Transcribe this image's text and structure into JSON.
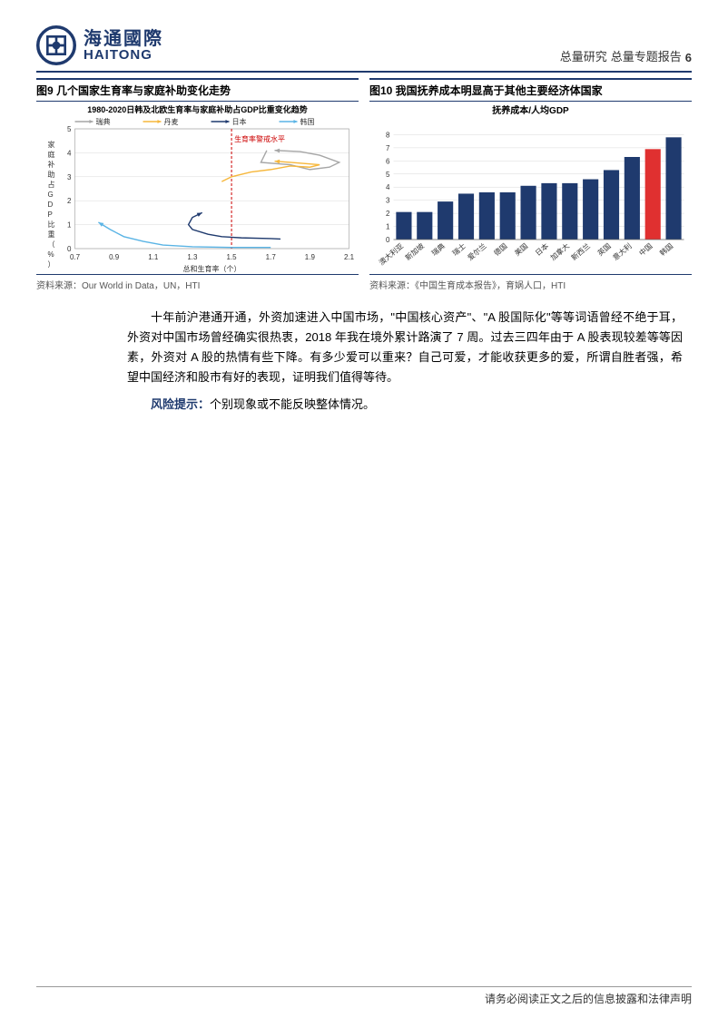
{
  "header": {
    "logo_cn": "海通國際",
    "logo_en": "HAITONG",
    "category1": "总量研究",
    "category2": "总量专题报告",
    "page_num": "6"
  },
  "chart9": {
    "title": "图9  几个国家生育率与家庭补助变化走势",
    "inner_title": "1980-2020日韩及北欧生育率与家庭补助占GDP比重变化趋势",
    "legend": [
      {
        "label": "瑞典",
        "color": "#a6a6a6"
      },
      {
        "label": "丹麦",
        "color": "#f6b73c"
      },
      {
        "label": "日本",
        "color": "#1f3a6e"
      },
      {
        "label": "韩国",
        "color": "#5ab4e5"
      }
    ],
    "xlabel": "总和生育率（个）",
    "ylabel": "家庭补助占GDP比重（%）",
    "xlim": [
      0.7,
      2.1
    ],
    "ylim": [
      0,
      5
    ],
    "xticks": [
      0.7,
      0.9,
      1.1,
      1.3,
      1.5,
      1.7,
      1.9,
      2.1
    ],
    "yticks": [
      0,
      1,
      2,
      3,
      4,
      5
    ],
    "vline_x": 1.5,
    "vline_label": "生育率警戒水平",
    "vline_color": "#cc0000",
    "series": {
      "sweden": [
        [
          1.68,
          4.1
        ],
        [
          1.65,
          3.6
        ],
        [
          1.8,
          3.5
        ],
        [
          1.9,
          3.3
        ],
        [
          2.0,
          3.4
        ],
        [
          2.05,
          3.6
        ],
        [
          1.95,
          3.9
        ],
        [
          1.85,
          4.05
        ],
        [
          1.72,
          4.1
        ]
      ],
      "denmark": [
        [
          1.45,
          2.8
        ],
        [
          1.5,
          3.0
        ],
        [
          1.6,
          3.2
        ],
        [
          1.7,
          3.3
        ],
        [
          1.8,
          3.45
        ],
        [
          1.9,
          3.4
        ],
        [
          1.95,
          3.5
        ],
        [
          1.8,
          3.6
        ],
        [
          1.72,
          3.65
        ]
      ],
      "japan": [
        [
          1.75,
          0.4
        ],
        [
          1.7,
          0.42
        ],
        [
          1.55,
          0.45
        ],
        [
          1.45,
          0.5
        ],
        [
          1.38,
          0.6
        ],
        [
          1.3,
          0.8
        ],
        [
          1.28,
          1.0
        ],
        [
          1.3,
          1.3
        ],
        [
          1.35,
          1.5
        ]
      ],
      "korea": [
        [
          1.7,
          0.05
        ],
        [
          1.5,
          0.05
        ],
        [
          1.3,
          0.08
        ],
        [
          1.15,
          0.15
        ],
        [
          1.05,
          0.3
        ],
        [
          0.95,
          0.5
        ],
        [
          0.88,
          0.8
        ],
        [
          0.84,
          1.0
        ],
        [
          0.82,
          1.1
        ]
      ]
    },
    "source": "资料来源：Our World in Data，UN，HTI",
    "background_color": "#ffffff",
    "grid_color": "#d9d9d9",
    "font_size": 9
  },
  "chart10": {
    "title": "图10 我国抚养成本明显高于其他主要经济体国家",
    "inner_title": "抚养成本/人均GDP",
    "type": "bar",
    "categories": [
      "澳大利亚",
      "新加坡",
      "瑞典",
      "瑞士",
      "爱尔兰",
      "德国",
      "美国",
      "日本",
      "加拿大",
      "新西兰",
      "英国",
      "意大利",
      "中国",
      "韩国"
    ],
    "values": [
      2.1,
      2.1,
      2.9,
      3.5,
      3.6,
      3.6,
      4.1,
      4.3,
      4.3,
      4.6,
      5.3,
      6.3,
      6.9,
      7.8
    ],
    "highlight_index": 12,
    "bar_color": "#1f3a6e",
    "highlight_color": "#e03030",
    "ylim": [
      0,
      9
    ],
    "yticks": [
      0,
      1,
      2,
      3,
      4,
      5,
      6,
      7,
      8
    ],
    "source": "资料来源：《中国生育成本报告》，育娲人口，HTI",
    "background_color": "#ffffff",
    "grid_color": "#d9d9d9",
    "font_size": 9
  },
  "body": {
    "para1": "十年前沪港通开通，外资加速进入中国市场，\"中国核心资产\"、\"A 股国际化\"等等词语曾经不绝于耳，外资对中国市场曾经确实很热衷，2018 年我在境外累计路演了 7 周。过去三四年由于 A 股表现较差等等因素，外资对 A 股的热情有些下降。有多少爱可以重来？自己可爱，才能收获更多的爱，所谓自胜者强，希望中国经济和股市有好的表现，证明我们值得等待。",
    "risk_label": "风险提示：",
    "risk_text": "个别现象或不能反映整体情况。"
  },
  "footer": "请务必阅读正文之后的信息披露和法律声明"
}
